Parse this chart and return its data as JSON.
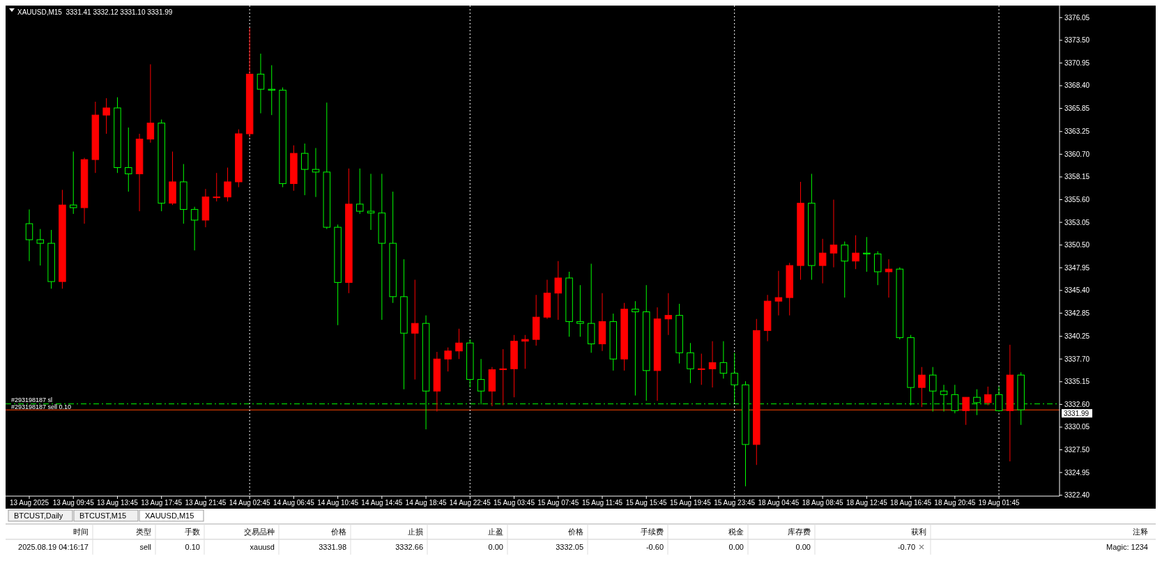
{
  "chart_data": {
    "type": "candlestick",
    "title": "XAUUSD,M15  3331.41 3332.12 3331.10 3331.99",
    "categories": [
      "13 Aug 2025",
      null,
      null,
      null,
      "13 Aug 09:45",
      null,
      null,
      null,
      "13 Aug 13:45",
      null,
      null,
      null,
      "13 Aug 17:45",
      null,
      null,
      null,
      "13 Aug 21:45",
      null,
      null,
      null,
      "14 Aug 02:45",
      null,
      null,
      null,
      "14 Aug 06:45",
      null,
      null,
      null,
      "14 Aug 10:45",
      null,
      null,
      null,
      "14 Aug 14:45",
      null,
      null,
      null,
      "14 Aug 18:45",
      null,
      null,
      null,
      "14 Aug 22:45",
      null,
      null,
      null,
      "15 Aug 03:45",
      null,
      null,
      null,
      "15 Aug 07:45",
      null,
      null,
      null,
      "15 Aug 11:45",
      null,
      null,
      null,
      "15 Aug 15:45",
      null,
      null,
      null,
      "15 Aug 19:45",
      null,
      null,
      null,
      "15 Aug 23:45",
      null,
      null,
      null,
      "18 Aug 04:45",
      null,
      null,
      null,
      "18 Aug 08:45",
      null,
      null,
      null,
      "18 Aug 12:45",
      null,
      null,
      null,
      "18 Aug 16:45",
      null,
      null,
      null,
      "18 Aug 20:45",
      null,
      null,
      null,
      "19 Aug 01:45",
      null,
      null
    ],
    "ohlc": [
      [
        3352.9,
        3354.5,
        3348.7,
        3351.1
      ],
      [
        3351.1,
        3352.3,
        3348.2,
        3350.7
      ],
      [
        3350.7,
        3352.2,
        3345.6,
        3346.4
      ],
      [
        3346.4,
        3356.7,
        3345.6,
        3355.0
      ],
      [
        3355.0,
        3361.0,
        3354.0,
        3354.7
      ],
      [
        3354.7,
        3360.3,
        3352.9,
        3360.1
      ],
      [
        3360.1,
        3366.6,
        3358.6,
        3365.1
      ],
      [
        3365.1,
        3367.0,
        3363.0,
        3365.9
      ],
      [
        3365.9,
        3367.1,
        3358.6,
        3359.2
      ],
      [
        3359.2,
        3363.7,
        3356.5,
        3358.5
      ],
      [
        3358.5,
        3363.0,
        3354.3,
        3362.4
      ],
      [
        3362.4,
        3370.8,
        3362.0,
        3364.2
      ],
      [
        3364.2,
        3364.6,
        3354.3,
        3355.2
      ],
      [
        3355.2,
        3361.0,
        3355.0,
        3357.6
      ],
      [
        3357.6,
        3359.6,
        3352.9,
        3354.5
      ],
      [
        3354.5,
        3354.8,
        3349.9,
        3353.3
      ],
      [
        3353.3,
        3356.8,
        3352.5,
        3355.9
      ],
      [
        3355.9,
        3358.6,
        3355.4,
        3355.9
      ],
      [
        3355.9,
        3359.2,
        3355.4,
        3357.6
      ],
      [
        3357.6,
        3363.5,
        3357.0,
        3363.0
      ],
      [
        3363.0,
        3374.9,
        3362.6,
        3369.7
      ],
      [
        3369.7,
        3372.0,
        3365.3,
        3368.0
      ],
      [
        3368.0,
        3370.7,
        3365.1,
        3367.9
      ],
      [
        3367.9,
        3368.2,
        3357.0,
        3357.4
      ],
      [
        3357.4,
        3361.7,
        3356.6,
        3360.8
      ],
      [
        3360.8,
        3361.9,
        3356.1,
        3359.0
      ],
      [
        3359.0,
        3361.4,
        3355.9,
        3358.7
      ],
      [
        3358.7,
        3366.5,
        3352.3,
        3352.5
      ],
      [
        3352.5,
        3352.8,
        3341.5,
        3346.3
      ],
      [
        3346.3,
        3359.1,
        3345.1,
        3355.1
      ],
      [
        3355.1,
        3359.1,
        3354.0,
        3354.3
      ],
      [
        3354.3,
        3358.5,
        3352.2,
        3354.1
      ],
      [
        3354.1,
        3358.5,
        3342.1,
        3350.7
      ],
      [
        3350.7,
        3356.5,
        3344.0,
        3344.7
      ],
      [
        3344.7,
        3348.9,
        3334.3,
        3340.6
      ],
      [
        3340.6,
        3346.6,
        3335.4,
        3341.7
      ],
      [
        3341.7,
        3342.6,
        3329.8,
        3334.1
      ],
      [
        3334.1,
        3338.5,
        3331.8,
        3337.7
      ],
      [
        3337.7,
        3339.0,
        3336.3,
        3338.6
      ],
      [
        3338.6,
        3341.1,
        3337.7,
        3339.5
      ],
      [
        3339.5,
        3339.9,
        3334.5,
        3335.4
      ],
      [
        3335.4,
        3337.7,
        3332.6,
        3334.1
      ],
      [
        3334.1,
        3336.8,
        3332.4,
        3336.5
      ],
      [
        3336.5,
        3338.8,
        3332.5,
        3336.6
      ],
      [
        3336.6,
        3340.4,
        3333.4,
        3339.7
      ],
      [
        3339.7,
        3340.4,
        3336.6,
        3339.9
      ],
      [
        3339.9,
        3344.9,
        3339.2,
        3342.4
      ],
      [
        3342.4,
        3346.6,
        3342.2,
        3345.1
      ],
      [
        3345.1,
        3348.7,
        3342.1,
        3346.8
      ],
      [
        3346.8,
        3347.5,
        3340.2,
        3341.9
      ],
      [
        3341.9,
        3346.0,
        3340.2,
        3341.7
      ],
      [
        3341.7,
        3348.4,
        3338.4,
        3339.4
      ],
      [
        3339.4,
        3345.1,
        3338.6,
        3341.9
      ],
      [
        3341.9,
        3342.8,
        3336.4,
        3337.7
      ],
      [
        3337.7,
        3344.0,
        3336.4,
        3343.3
      ],
      [
        3343.3,
        3344.2,
        3333.6,
        3343.0
      ],
      [
        3343.0,
        3346.0,
        3333.0,
        3336.4
      ],
      [
        3336.4,
        3343.5,
        3333.0,
        3342.2
      ],
      [
        3342.2,
        3345.1,
        3340.4,
        3342.6
      ],
      [
        3342.6,
        3343.9,
        3337.2,
        3338.4
      ],
      [
        3338.4,
        3339.5,
        3335.0,
        3336.6
      ],
      [
        3336.6,
        3338.3,
        3334.8,
        3336.6
      ],
      [
        3336.6,
        3339.7,
        3334.5,
        3337.3
      ],
      [
        3337.3,
        3339.7,
        3335.5,
        3336.1
      ],
      [
        3336.1,
        3338.4,
        3332.8,
        3334.8
      ],
      [
        3334.8,
        3335.2,
        3323.4,
        3328.1
      ],
      [
        3328.1,
        3342.2,
        3325.8,
        3340.9
      ],
      [
        3340.9,
        3344.9,
        3339.7,
        3344.2
      ],
      [
        3344.2,
        3347.6,
        3342.6,
        3344.6
      ],
      [
        3344.6,
        3348.5,
        3342.6,
        3348.2
      ],
      [
        3348.2,
        3357.6,
        3346.6,
        3355.2
      ],
      [
        3355.2,
        3358.5,
        3346.6,
        3348.2
      ],
      [
        3348.2,
        3351.2,
        3346.2,
        3349.6
      ],
      [
        3349.6,
        3355.6,
        3348.0,
        3350.5
      ],
      [
        3350.5,
        3350.9,
        3344.6,
        3348.7
      ],
      [
        3348.7,
        3351.6,
        3347.8,
        3349.6
      ],
      [
        3349.6,
        3351.4,
        3347.5,
        3349.5
      ],
      [
        3349.5,
        3349.8,
        3346.0,
        3347.5
      ],
      [
        3347.5,
        3348.9,
        3344.6,
        3347.8
      ],
      [
        3347.8,
        3348.0,
        3339.9,
        3340.1
      ],
      [
        3340.1,
        3340.4,
        3332.5,
        3334.5
      ],
      [
        3334.5,
        3336.8,
        3332.3,
        3335.9
      ],
      [
        3335.9,
        3336.8,
        3331.8,
        3334.1
      ],
      [
        3334.1,
        3334.8,
        3331.8,
        3333.7
      ],
      [
        3333.7,
        3334.8,
        3331.6,
        3331.9
      ],
      [
        3331.9,
        3333.4,
        3330.3,
        3333.4
      ],
      [
        3333.4,
        3334.3,
        3331.4,
        3332.8
      ],
      [
        3332.8,
        3334.6,
        3332.5,
        3333.7
      ],
      [
        3333.7,
        3334.6,
        3331.8,
        3331.9
      ],
      [
        3331.9,
        3339.3,
        3326.2,
        3335.9
      ],
      [
        3335.9,
        3336.2,
        3330.3,
        3331.99
      ]
    ],
    "ylim": [
      3322.3,
      3377.4
    ],
    "yticks": [
      {
        "value": 3322.4,
        "label": "3322.40"
      },
      {
        "value": 3324.95,
        "label": "3324.95"
      },
      {
        "value": 3327.5,
        "label": "3327.50"
      },
      {
        "value": 3330.05,
        "label": "3330.05"
      },
      {
        "value": 3332.6,
        "label": "3332.60"
      },
      {
        "value": 3335.15,
        "label": "3335.15"
      },
      {
        "value": 3337.7,
        "label": "3337.70"
      },
      {
        "value": 3340.25,
        "label": "3340.25"
      },
      {
        "value": 3342.85,
        "label": "3342.85"
      },
      {
        "value": 3345.4,
        "label": "3345.40"
      },
      {
        "value": 3347.95,
        "label": "3347.95"
      },
      {
        "value": 3350.5,
        "label": "3350.50"
      },
      {
        "value": 3353.05,
        "label": "3353.05"
      },
      {
        "value": 3355.6,
        "label": "3355.60"
      },
      {
        "value": 3358.15,
        "label": "3358.15"
      },
      {
        "value": 3360.7,
        "label": "3360.70"
      },
      {
        "value": 3363.25,
        "label": "3363.25"
      },
      {
        "value": 3365.85,
        "label": "3365.85"
      },
      {
        "value": 3368.4,
        "label": "3368.40"
      },
      {
        "value": 3370.95,
        "label": "3370.95"
      },
      {
        "value": 3373.5,
        "label": "3373.50"
      },
      {
        "value": 3376.05,
        "label": "3376.05"
      }
    ],
    "grid": false,
    "ref_lines": [
      {
        "axis": "y",
        "value": 3332.66,
        "label": "#293198187 sl",
        "color": "#00ff00",
        "line_style": "dashed"
      },
      {
        "axis": "y",
        "value": 3331.98,
        "label": "#293198187 sell 0.10",
        "color": "#ff4500",
        "line_style": "solid"
      },
      {
        "axis": "x",
        "value": "14 Aug 02:45",
        "color": "#ffffff",
        "line_style": "dotted"
      },
      {
        "axis": "x",
        "value": "14 Aug 22:45",
        "color": "#ffffff",
        "line_style": "dotted"
      },
      {
        "axis": "x",
        "value": "15 Aug 23:45",
        "color": "#ffffff",
        "line_style": "dotted"
      },
      {
        "axis": "x",
        "value": "19 Aug 01:45",
        "color": "#ffffff",
        "line_style": "dotted"
      }
    ],
    "annotations": [
      "3331.99",
      "BTCUST,Daily",
      "BTCUST,M15",
      "XAUUSD,M15",
      "时间",
      "类型",
      "手数",
      "交易品种",
      "价格",
      "止损",
      "止盈",
      "价格",
      "手续费",
      "税金",
      "库存费",
      "获利",
      "注释",
      "2025.08.19 04:16:17",
      "sell",
      "0.10",
      "xauusd",
      "3331.98",
      "3332.66",
      "0.00",
      "3332.05",
      "-0.60",
      "0.00",
      "0.00",
      "-0.70",
      "Magic: 1234"
    ]
  }
}
